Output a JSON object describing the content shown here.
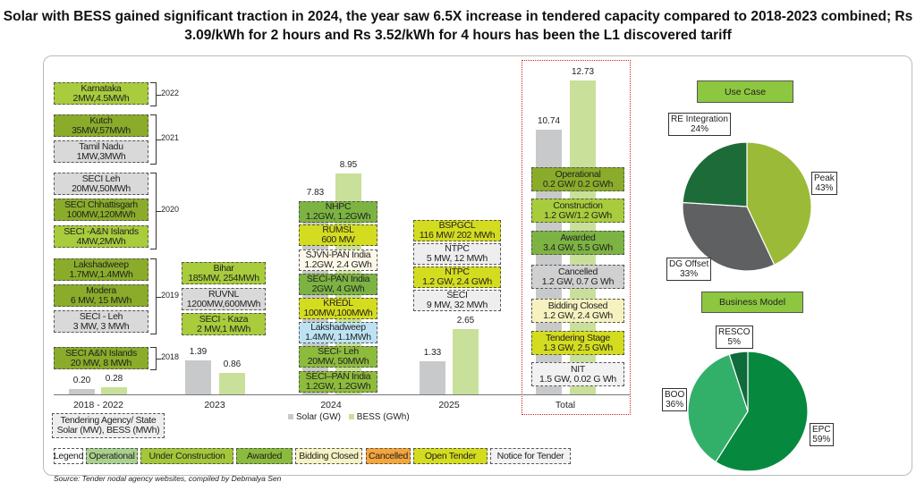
{
  "title": "Solar with BESS gained significant traction in 2024, the year saw 6.5X increase in tendered capacity compared to 2018-2023 combined; Rs 3.09/kWh for 2 hours and Rs 3.52/kWh for 4 hours has been the L1 discovered tariff",
  "chart_data": [
    {
      "type": "bar",
      "categories": [
        "2018  - 2022",
        "2023",
        "2024",
        "2025",
        "Total"
      ],
      "series": [
        {
          "name": "Solar (GW)",
          "values": [
            0.2,
            1.39,
            7.83,
            1.33,
            10.74
          ],
          "color": "#c8c9cb"
        },
        {
          "name": "BESS (GWh)",
          "values": [
            0.28,
            0.86,
            8.95,
            2.65,
            12.73
          ],
          "color": "#c9e09a"
        }
      ],
      "value_labels": [
        [
          "0.20",
          "1.39",
          "7.83",
          "1.33",
          "10.74"
        ],
        [
          "0.28",
          "0.86",
          "8.95",
          "2.65",
          "12.73"
        ]
      ],
      "ylim": [
        0,
        13
      ],
      "legend_placement": "bottom",
      "grid": false
    },
    {
      "type": "pie",
      "title": "Use Case",
      "slices": [
        {
          "label": "Peak",
          "value": 43,
          "text": "43%",
          "color": "#9bbb38"
        },
        {
          "label": "DG Offset",
          "value": 33,
          "text": "33%",
          "color": "#5f6062"
        },
        {
          "label": "RE Integration",
          "value": 24,
          "text": "24%",
          "color": "#1e6b3a"
        }
      ]
    },
    {
      "type": "pie",
      "title": "Business Model",
      "slices": [
        {
          "label": "EPC",
          "value": 59,
          "text": "59%",
          "color": "#06883f"
        },
        {
          "label": "BOO",
          "value": 36,
          "text": "36%",
          "color": "#32b06a"
        },
        {
          "label": "RESCO",
          "value": 5,
          "text": "5%",
          "color": "#0f6b3a"
        }
      ]
    }
  ],
  "tenders": {
    "early": [
      {
        "name": "Karnataka",
        "cap": "2MW,4.5MWh",
        "fill": "#a8cc3c"
      },
      {
        "name": "Kutch",
        "cap": "35MW,57MWh",
        "fill": "#8aac2a"
      },
      {
        "name": "Tamil Nadu",
        "cap": "1MW,3MWh",
        "fill": "#d9d9d9"
      },
      {
        "name": "SECI Leh",
        "cap": "20MW,50MWh",
        "fill": "#d9d9d9"
      },
      {
        "name": "SECI Chhattisgarh",
        "cap": "100MW,120MWh",
        "fill": "#8aac2a"
      },
      {
        "name": "SECI  -A&N Islands",
        "cap": "4MW,2MWh",
        "fill": "#a8cc3c"
      },
      {
        "name": "Lakshadweep",
        "cap": "1.7MW,1.4MWh",
        "fill": "#8aac2a"
      },
      {
        "name": "Modera",
        "cap": "6 MW, 15 MWh",
        "fill": "#8aac2a"
      },
      {
        "name": "SECI  - Leh",
        "cap": "3 MW, 3 MWh",
        "fill": "#d9d9d9"
      },
      {
        "name": "SECI A&N Islands",
        "cap": "20 MW, 8 MWh",
        "fill": "#8aac2a"
      }
    ],
    "years": [
      "2022",
      "2021",
      "2020",
      "2019",
      "2018"
    ],
    "y2023": [
      {
        "name": "Bihar",
        "cap": "185MW, 254MWh",
        "fill": "#a8cc3c"
      },
      {
        "name": "RUVNL",
        "cap": "1200MW,600MWh",
        "fill": "#d9d9d9"
      },
      {
        "name": "SECI  - Kaza",
        "cap": "2 MW,1 MWh",
        "fill": "#a8cc3c"
      }
    ],
    "y2024": [
      {
        "name": "NHPC",
        "cap": "1.2GW, 1.2GWh",
        "fill": "#7cb342"
      },
      {
        "name": "RUMSL",
        "cap": "600 MW",
        "fill": "#d4dc1f"
      },
      {
        "name": "SJVN-PAN India",
        "cap": "1.2GW, 2.4 GWh",
        "fill": "#fdf8e8"
      },
      {
        "name": "SECI-PAN India",
        "cap": "2GW, 4 GWh",
        "fill": "#7cb342"
      },
      {
        "name": "KREDL",
        "cap": "100MW,100MWh",
        "fill": "#d4dc1f"
      },
      {
        "name": "Lakshadweep",
        "cap": "1.4MW, 1.1MWh",
        "fill": "#bde3f3"
      },
      {
        "name": "SECI- Leh",
        "cap": "20MW, 50MWh",
        "fill": "#8dbb3c"
      },
      {
        "name": "SECI–PAN India",
        "cap": "1.2GW, 1.2GWh",
        "fill": "#8dbb3c"
      }
    ],
    "y2025": [
      {
        "name": "BSPGCL",
        "cap": "116 MW/ 202 MWh",
        "fill": "#d4dc1f"
      },
      {
        "name": "NTPC",
        "cap": "5 MW, 12 MWh",
        "fill": "#eeeeee"
      },
      {
        "name": "NTPC",
        "cap": "1.2 GW, 2.4 GWh",
        "fill": "#d4dc1f"
      },
      {
        "name": "SECI",
        "cap": "9 MW, 32 MWh",
        "fill": "#eeeeee"
      }
    ],
    "total": [
      {
        "name": "Operational",
        "cap": "0.2 GW/ 0.2 GWh",
        "fill": "#8aac2a"
      },
      {
        "name": "Construction",
        "cap": "1.2 GW/1.2 GWh",
        "fill": "#a8cc3c"
      },
      {
        "name": "Awarded",
        "cap": "3.4 GW, 5.5 GWh",
        "fill": "#7cb342"
      },
      {
        "name": "Cancelled",
        "cap": "1.2 GW, 0.7 G   Wh",
        "fill": "#d0d0d0"
      },
      {
        "name": "Bidding Closed",
        "cap": "1.2 GW, 2.4 GWh",
        "fill": "#f5f2c0"
      },
      {
        "name": "Tendering Stage",
        "cap": "1.3 GW, 2.5 GWh",
        "fill": "#d4dc1f"
      },
      {
        "name": "NIT",
        "cap": "1.5 GW, 0.02 G   Wh",
        "fill": "#f2f2f2"
      }
    ]
  },
  "key_box": {
    "line1": "Tendering Agency/ State",
    "line2": "Solar (MW), BESS (MWh)"
  },
  "status_legend": [
    {
      "label": "Legend",
      "fill": "#ffffff"
    },
    {
      "label": "Operational",
      "fill": "#a9d18e"
    },
    {
      "label": "Under Construction",
      "fill": "#a4c639"
    },
    {
      "label": "Awarded",
      "fill": "#8bbb3c"
    },
    {
      "label": "Bidding Closed",
      "fill": "#f5f3c4"
    },
    {
      "label": "Cancelled",
      "fill": "#f4a53c"
    },
    {
      "label": "Open Tender",
      "fill": "#d4dc1f"
    },
    {
      "label": "Notice for Tender",
      "fill": "#f2f2f2"
    }
  ],
  "source": "Source: Tender nodal agency websites, compiled by Debmalya Sen"
}
